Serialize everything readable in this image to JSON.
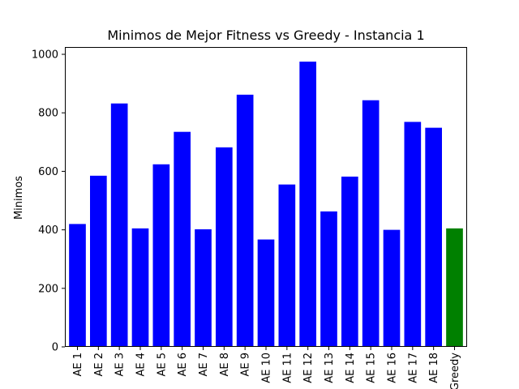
{
  "chart_data": {
    "type": "bar",
    "title": "Minimos de Mejor Fitness vs Greedy - Instancia 1",
    "xlabel": "",
    "ylabel": "Minimos",
    "categories": [
      "AE 1",
      "AE 2",
      "AE 3",
      "AE 4",
      "AE 5",
      "AE 6",
      "AE 7",
      "AE 8",
      "AE 9",
      "AE 10",
      "AE 11",
      "AE 12",
      "AE 13",
      "AE 14",
      "AE 15",
      "AE 16",
      "AE 17",
      "AE 18",
      "Greedy"
    ],
    "values": [
      420,
      585,
      832,
      405,
      624,
      735,
      402,
      682,
      862,
      367,
      555,
      975,
      463,
      582,
      843,
      400,
      769,
      749,
      405
    ],
    "bar_colors": [
      "#0000ff",
      "#0000ff",
      "#0000ff",
      "#0000ff",
      "#0000ff",
      "#0000ff",
      "#0000ff",
      "#0000ff",
      "#0000ff",
      "#0000ff",
      "#0000ff",
      "#0000ff",
      "#0000ff",
      "#0000ff",
      "#0000ff",
      "#0000ff",
      "#0000ff",
      "#0000ff",
      "#008000"
    ],
    "ylim": [
      0,
      1025
    ],
    "yticks": [
      0,
      200,
      400,
      600,
      800,
      1000
    ],
    "grid": false,
    "legend": "none"
  }
}
